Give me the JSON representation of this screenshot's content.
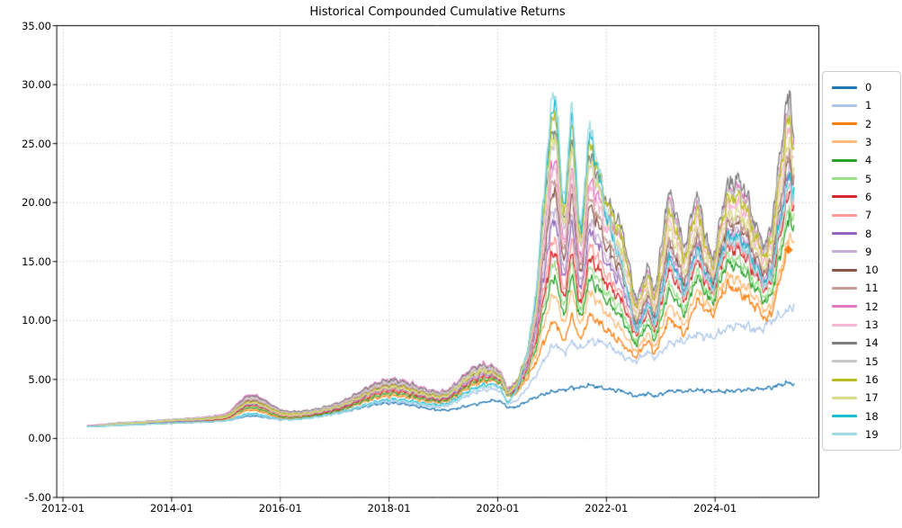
{
  "chart_data": {
    "type": "line",
    "title": "Historical Compounded Cumulative Returns",
    "xlabel": "",
    "ylabel": "",
    "grid": "dotted",
    "legend_position": "right outside",
    "xlim": [
      2011.884,
      2025.9
    ],
    "ylim": [
      -5,
      35
    ],
    "x_tick_values": [
      2012,
      2014,
      2016,
      2018,
      2020,
      2022,
      2024
    ],
    "x_tick_labels": [
      "2012-01",
      "2014-01",
      "2016-01",
      "2018-01",
      "2020-01",
      "2022-01",
      "2024-01"
    ],
    "y_tick_values": [
      35,
      30,
      25,
      20,
      15,
      10,
      5,
      0,
      -5
    ],
    "y_tick_labels": [
      "35.00",
      "30.00",
      "25.00",
      "20.00",
      "15.00",
      "10.00",
      "5.00",
      "0.00",
      "-5.00"
    ],
    "grid_color": "#b0b0b0",
    "x": [
      2012.45,
      2013.0,
      2014.0,
      2015.0,
      2015.45,
      2016.1,
      2017.0,
      2018.0,
      2019.0,
      2019.6,
      2020.0,
      2020.25,
      2020.65,
      2021.05,
      2021.2,
      2021.38,
      2021.52,
      2021.68,
      2022.0,
      2022.3,
      2022.55,
      2022.75,
      2022.9,
      2023.15,
      2023.45,
      2023.65,
      2023.95,
      2024.2,
      2024.5,
      2024.8,
      2025.0,
      2025.35,
      2025.45
    ],
    "series": [
      {
        "name": "0",
        "color": "#1f77b4",
        "values": [
          1.0,
          1.2,
          1.3,
          1.5,
          1.9,
          1.6,
          2.1,
          3.0,
          2.4,
          2.9,
          3.2,
          2.6,
          3.4,
          4.0,
          4.1,
          4.3,
          4.3,
          4.5,
          4.2,
          4.0,
          3.6,
          3.8,
          3.6,
          4.0,
          4.0,
          4.1,
          4.0,
          4.0,
          4.1,
          4.2,
          4.3,
          4.7,
          4.6
        ]
      },
      {
        "name": "1",
        "color": "#aec7e8",
        "values": [
          1.0,
          1.2,
          1.35,
          1.55,
          2.0,
          1.65,
          2.2,
          3.1,
          2.7,
          3.9,
          4.1,
          3.0,
          5.0,
          7.9,
          7.3,
          8.1,
          7.6,
          8.2,
          8.0,
          7.0,
          6.6,
          7.3,
          6.9,
          8.0,
          8.3,
          8.8,
          8.6,
          9.3,
          9.6,
          9.2,
          9.9,
          10.8,
          11.4
        ]
      },
      {
        "name": "2",
        "color": "#ff7f0e",
        "values": [
          1.0,
          1.15,
          1.3,
          1.6,
          2.4,
          1.7,
          2.3,
          3.6,
          3.1,
          4.6,
          4.8,
          3.6,
          6.0,
          9.9,
          8.3,
          10.2,
          8.4,
          10.3,
          9.2,
          8.0,
          7.0,
          8.2,
          7.4,
          10.0,
          9.0,
          11.5,
          10.6,
          12.8,
          12.2,
          11.0,
          10.4,
          16.0,
          null
        ]
      },
      {
        "name": "3",
        "color": "#ffbb78",
        "values": [
          1.0,
          1.16,
          1.4,
          1.6,
          2.5,
          1.8,
          2.3,
          3.7,
          3.1,
          4.7,
          4.9,
          3.6,
          6.5,
          12.2,
          9.8,
          12.3,
          9.6,
          12.2,
          10.6,
          9.1,
          7.5,
          8.8,
          8.0,
          11.1,
          9.8,
          12.4,
          11.1,
          13.6,
          13.1,
          11.7,
          11.1,
          16.6,
          17.0
        ]
      },
      {
        "name": "4",
        "color": "#2ca02c",
        "values": [
          1.0,
          1.2,
          1.4,
          1.7,
          2.6,
          1.8,
          2.3,
          3.8,
          3.2,
          4.8,
          4.9,
          3.7,
          6.9,
          13.6,
          10.6,
          13.5,
          10.2,
          13.3,
          11.7,
          10.1,
          8.1,
          9.6,
          8.6,
          12.3,
          10.7,
          13.5,
          11.7,
          14.6,
          14.2,
          12.4,
          12.0,
          18.2,
          18.2
        ]
      },
      {
        "name": "5",
        "color": "#98df8a",
        "values": [
          1.0,
          1.2,
          1.4,
          1.7,
          2.7,
          1.9,
          2.4,
          3.9,
          3.3,
          4.9,
          5.0,
          3.7,
          7.1,
          14.8,
          11.4,
          14.5,
          10.8,
          14.2,
          12.4,
          10.7,
          8.4,
          10.0,
          9.0,
          12.9,
          11.1,
          14.0,
          12.0,
          15.1,
          14.8,
          12.8,
          12.4,
          19.0,
          18.8
        ]
      },
      {
        "name": "6",
        "color": "#d62728",
        "values": [
          1.0,
          1.2,
          1.4,
          1.7,
          2.8,
          1.9,
          2.4,
          4.0,
          3.3,
          5.0,
          5.1,
          3.8,
          7.4,
          15.8,
          12.0,
          15.4,
          11.3,
          15.0,
          13.2,
          11.5,
          8.9,
          10.6,
          9.5,
          14.0,
          11.9,
          14.9,
          12.5,
          15.9,
          15.7,
          13.5,
          13.1,
          20.3,
          19.8
        ]
      },
      {
        "name": "7",
        "color": "#ff9896",
        "values": [
          1.0,
          1.2,
          1.4,
          1.8,
          2.9,
          1.9,
          2.5,
          4.1,
          3.4,
          5.1,
          5.2,
          3.9,
          7.6,
          16.9,
          12.7,
          16.4,
          11.9,
          16.0,
          13.9,
          12.0,
          9.1,
          10.9,
          9.8,
          14.4,
          12.2,
          15.3,
          12.7,
          16.2,
          16.1,
          13.7,
          13.4,
          20.9,
          20.2
        ]
      },
      {
        "name": "8",
        "color": "#9467bd",
        "values": [
          1.0,
          1.2,
          1.4,
          1.8,
          2.9,
          2.0,
          2.5,
          4.2,
          3.4,
          5.2,
          5.2,
          3.9,
          8.0,
          18.5,
          13.7,
          17.8,
          12.6,
          17.2,
          14.9,
          12.8,
          9.5,
          11.4,
          10.2,
          15.3,
          12.8,
          16.0,
          13.1,
          16.9,
          16.9,
          14.3,
          14.0,
          22.0,
          21.0
        ]
      },
      {
        "name": "9",
        "color": "#c5b0d5",
        "values": [
          1.0,
          1.2,
          1.5,
          1.8,
          3.0,
          2.0,
          2.6,
          4.3,
          3.5,
          5.3,
          5.3,
          4.0,
          8.2,
          19.5,
          14.3,
          18.7,
          13.1,
          18.0,
          15.4,
          13.2,
          9.7,
          11.6,
          10.4,
          15.7,
          13.1,
          16.4,
          13.3,
          17.2,
          17.2,
          14.5,
          14.2,
          22.5,
          21.4
        ]
      },
      {
        "name": "10",
        "color": "#8c564b",
        "values": [
          1.0,
          1.2,
          1.5,
          1.9,
          3.2,
          2.1,
          2.7,
          4.5,
          3.7,
          5.5,
          5.5,
          4.1,
          8.6,
          21.0,
          15.3,
          20.1,
          13.9,
          19.3,
          16.3,
          13.9,
          10.0,
          12.0,
          10.8,
          16.3,
          13.5,
          16.9,
          13.5,
          17.7,
          17.8,
          14.9,
          14.7,
          23.3,
          22.0
        ]
      },
      {
        "name": "11",
        "color": "#c49c94",
        "values": [
          1.0,
          1.3,
          1.5,
          1.9,
          3.3,
          2.1,
          2.7,
          4.6,
          3.7,
          5.7,
          5.6,
          4.2,
          8.8,
          22.0,
          15.9,
          20.9,
          14.4,
          20.0,
          16.9,
          14.3,
          10.2,
          12.2,
          10.9,
          16.6,
          13.7,
          17.2,
          13.7,
          18.0,
          18.1,
          15.1,
          14.9,
          23.7,
          22.3
        ]
      },
      {
        "name": "12",
        "color": "#e377c2",
        "values": [
          1.1,
          1.3,
          1.6,
          2.1,
          3.7,
          2.3,
          2.9,
          5.0,
          4.0,
          6.1,
          5.9,
          4.4,
          9.2,
          23.6,
          16.8,
          22.3,
          15.1,
          21.3,
          18.8,
          16.5,
          11.7,
          14.1,
          12.6,
          19.8,
          16.0,
          19.9,
          15.2,
          20.4,
          20.9,
          17.1,
          17.0,
          27.8,
          25.3
        ]
      },
      {
        "name": "13",
        "color": "#f7b6d2",
        "values": [
          1.0,
          1.3,
          1.6,
          2.0,
          3.5,
          2.2,
          2.8,
          4.8,
          3.9,
          5.9,
          5.8,
          4.3,
          9.0,
          23.0,
          16.5,
          21.8,
          14.8,
          20.8,
          17.9,
          15.4,
          10.9,
          13.1,
          11.8,
          18.2,
          14.9,
          18.5,
          14.4,
          19.2,
          19.5,
          16.1,
          15.9,
          25.7,
          23.8
        ]
      },
      {
        "name": "14",
        "color": "#7f7f7f",
        "values": [
          1.0,
          1.3,
          1.6,
          2.0,
          3.6,
          2.3,
          2.9,
          4.9,
          3.9,
          6.0,
          5.8,
          4.3,
          9.8,
          26.3,
          18.5,
          24.7,
          16.5,
          23.5,
          20.2,
          17.5,
          12.0,
          14.5,
          13.0,
          20.5,
          16.5,
          20.5,
          15.5,
          21.0,
          21.5,
          17.5,
          17.5,
          28.7,
          26.0
        ]
      },
      {
        "name": "15",
        "color": "#c7c7c7",
        "values": [
          1.0,
          1.3,
          1.6,
          2.0,
          3.4,
          2.2,
          2.8,
          4.7,
          3.8,
          5.8,
          5.7,
          4.2,
          9.6,
          25.3,
          17.9,
          23.9,
          16.0,
          22.7,
          19.4,
          16.6,
          11.5,
          13.9,
          12.4,
          19.5,
          15.8,
          19.6,
          15.0,
          20.2,
          20.6,
          16.9,
          16.8,
          27.4,
          25.0
        ]
      },
      {
        "name": "16",
        "color": "#bcbd22",
        "values": [
          1.0,
          1.2,
          1.5,
          1.9,
          3.1,
          2.1,
          2.6,
          4.4,
          3.6,
          5.5,
          5.4,
          4.1,
          10.1,
          27.5,
          19.3,
          25.8,
          17.0,
          24.4,
          20.1,
          16.7,
          11.3,
          13.6,
          12.2,
          18.9,
          15.4,
          19.2,
          14.8,
          19.8,
          20.1,
          16.5,
          16.4,
          26.7,
          24.5
        ]
      },
      {
        "name": "17",
        "color": "#dbdb8d",
        "values": [
          1.0,
          1.2,
          1.5,
          1.8,
          3.0,
          2.0,
          2.6,
          4.3,
          3.5,
          5.6,
          5.3,
          4.0,
          9.6,
          25.7,
          18.2,
          24.2,
          16.2,
          23.0,
          18.7,
          15.4,
          10.5,
          12.6,
          11.3,
          17.4,
          14.3,
          17.8,
          14.0,
          18.5,
          18.7,
          15.6,
          15.4,
          24.7,
          23.0
        ]
      },
      {
        "name": "18",
        "color": "#17becf",
        "values": [
          1.0,
          1.1,
          1.3,
          1.5,
          2.1,
          1.6,
          2.1,
          3.3,
          2.9,
          4.3,
          4.5,
          3.4,
          10.3,
          28.4,
          19.9,
          26.6,
          17.5,
          25.2,
          19.0,
          14.4,
          9.4,
          11.2,
          10.1,
          15.0,
          12.6,
          15.8,
          13.0,
          16.7,
          16.7,
          14.1,
          13.8,
          21.7,
          20.8
        ]
      },
      {
        "name": "19",
        "color": "#9edae5",
        "values": [
          1.0,
          1.1,
          1.3,
          1.5,
          2.0,
          1.6,
          2.1,
          3.2,
          2.8,
          4.1,
          4.4,
          3.3,
          10.5,
          29.4,
          20.5,
          27.5,
          18.0,
          26.0,
          19.2,
          14.3,
          9.2,
          11.0,
          9.9,
          14.6,
          12.3,
          15.5,
          12.8,
          16.4,
          16.3,
          13.9,
          13.5,
          21.1,
          20.4
        ]
      }
    ],
    "end_marker": {
      "series": "2",
      "shape": "diamond",
      "x": 2025.35,
      "y": 16.0,
      "color": "#ff7f0e"
    }
  }
}
